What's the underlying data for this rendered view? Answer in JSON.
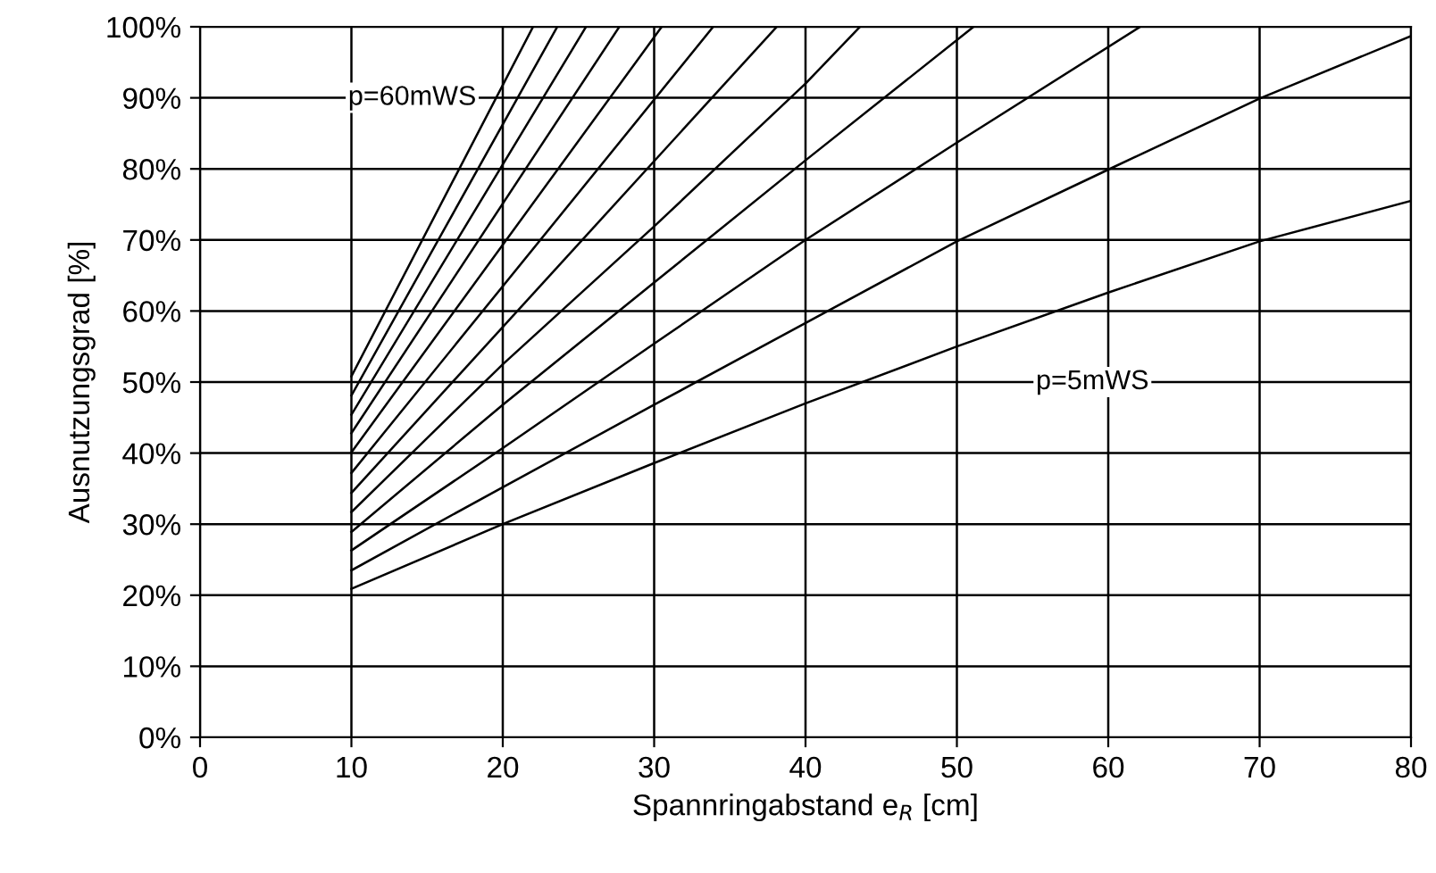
{
  "chart_data": {
    "type": "line",
    "xlabel": "Spannringabstand e$_{R}$ [cm]",
    "ylabel": "Ausnutzungsgrad [%]",
    "xlim": [
      0,
      80
    ],
    "xticks": [
      0,
      10,
      20,
      30,
      40,
      50,
      60,
      70,
      80
    ],
    "ylim": [
      0,
      100
    ],
    "yticks": [
      {
        "value": 0,
        "label": "0%"
      },
      {
        "value": 10,
        "label": "10%"
      },
      {
        "value": 20,
        "label": "20%"
      },
      {
        "value": 30,
        "label": "30%"
      },
      {
        "value": 40,
        "label": "40%"
      },
      {
        "value": 50,
        "label": "50%"
      },
      {
        "value": 60,
        "label": "60%"
      },
      {
        "value": 70,
        "label": "70%"
      },
      {
        "value": 80,
        "label": "80%"
      },
      {
        "value": 90,
        "label": "90%"
      },
      {
        "value": 100,
        "label": "100%"
      }
    ],
    "grid": true,
    "legend": false,
    "marker": "none",
    "line_style": "solid",
    "series": [
      {
        "name": "p=5mWS",
        "color": "#000000",
        "x": [
          10,
          20,
          30,
          40,
          50,
          60,
          70,
          80
        ],
        "values": [
          20.9,
          30,
          38.6,
          47,
          55,
          62.6,
          69.8,
          75.5
        ]
      },
      {
        "color": "#000000",
        "x": [
          10,
          20,
          30,
          40,
          50,
          60,
          70,
          80
        ],
        "values": [
          23.5,
          35.2,
          46.8,
          58.3,
          69.8,
          79.9,
          89.9,
          98.7
        ]
      },
      {
        "color": "#000000",
        "x": [
          10,
          20,
          30,
          40,
          50,
          62.1
        ],
        "values": [
          26.3,
          40.7,
          55.4,
          70,
          83.7,
          100
        ]
      },
      {
        "color": "#000000",
        "x": [
          10,
          20,
          30,
          40,
          51.1
        ],
        "values": [
          28.9,
          46.8,
          64,
          81.2,
          100
        ]
      },
      {
        "color": "#000000",
        "x": [
          10,
          20,
          30,
          40,
          43.6
        ],
        "values": [
          31.7,
          52.5,
          71.9,
          92,
          100
        ]
      },
      {
        "color": "#000000",
        "x": [
          10,
          38.1
        ],
        "values": [
          34.4,
          100
        ]
      },
      {
        "color": "#000000",
        "x": [
          10,
          33.9
        ],
        "values": [
          37.2,
          100
        ]
      },
      {
        "color": "#000000",
        "x": [
          10,
          30.5
        ],
        "values": [
          40.1,
          100
        ]
      },
      {
        "color": "#000000",
        "x": [
          10,
          27.7
        ],
        "values": [
          42.8,
          100
        ]
      },
      {
        "color": "#000000",
        "x": [
          10,
          25.5
        ],
        "values": [
          45.4,
          100
        ]
      },
      {
        "color": "#000000",
        "x": [
          10,
          23.6
        ],
        "values": [
          48.1,
          100
        ]
      },
      {
        "name": "p=60mWS",
        "color": "#000000",
        "x": [
          10,
          22.0
        ],
        "values": [
          50.8,
          100
        ]
      }
    ]
  }
}
